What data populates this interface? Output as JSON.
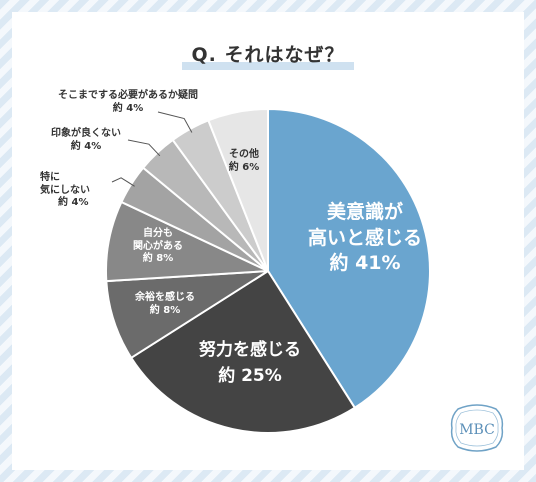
{
  "title": "Q. それはなぜ？",
  "logo_text": "MBC",
  "colors": {
    "slice_41": "#6aa5cf",
    "slice_25": "#444444",
    "slice_8a": "#6b6b6b",
    "slice_8b": "#888888",
    "slice_4a": "#a3a3a3",
    "slice_4b": "#b8b8b8",
    "slice_4c": "#cccccc",
    "slice_6": "#e6e6e6"
  },
  "chart_data": {
    "type": "pie",
    "title": "Q. それはなぜ？",
    "slices": [
      {
        "label": "美意識が高いと感じる",
        "lines": [
          "美意識が",
          "高いと感じる"
        ],
        "value": 41,
        "value_label": "約 41%"
      },
      {
        "label": "努力を感じる",
        "lines": [
          "努力を感じる"
        ],
        "value": 25,
        "value_label": "約 25%"
      },
      {
        "label": "余裕を感じる",
        "lines": [
          "余裕を感じる"
        ],
        "value": 8,
        "value_label": "約 8%"
      },
      {
        "label": "自分も関心がある",
        "lines": [
          "自分も",
          "関心がある"
        ],
        "value": 8,
        "value_label": "約 8%"
      },
      {
        "label": "特に気にしない",
        "lines": [
          "特に",
          "気にしない"
        ],
        "value": 4,
        "value_label": "約 4%"
      },
      {
        "label": "印象が良くない",
        "lines": [
          "印象が良くない"
        ],
        "value": 4,
        "value_label": "約 4%"
      },
      {
        "label": "そこまでする必要があるか疑問",
        "lines": [
          "そこまでする必要があるか疑問"
        ],
        "value": 4,
        "value_label": "約 4%"
      },
      {
        "label": "その他",
        "lines": [
          "その他"
        ],
        "value": 6,
        "value_label": "約 6%"
      }
    ]
  }
}
